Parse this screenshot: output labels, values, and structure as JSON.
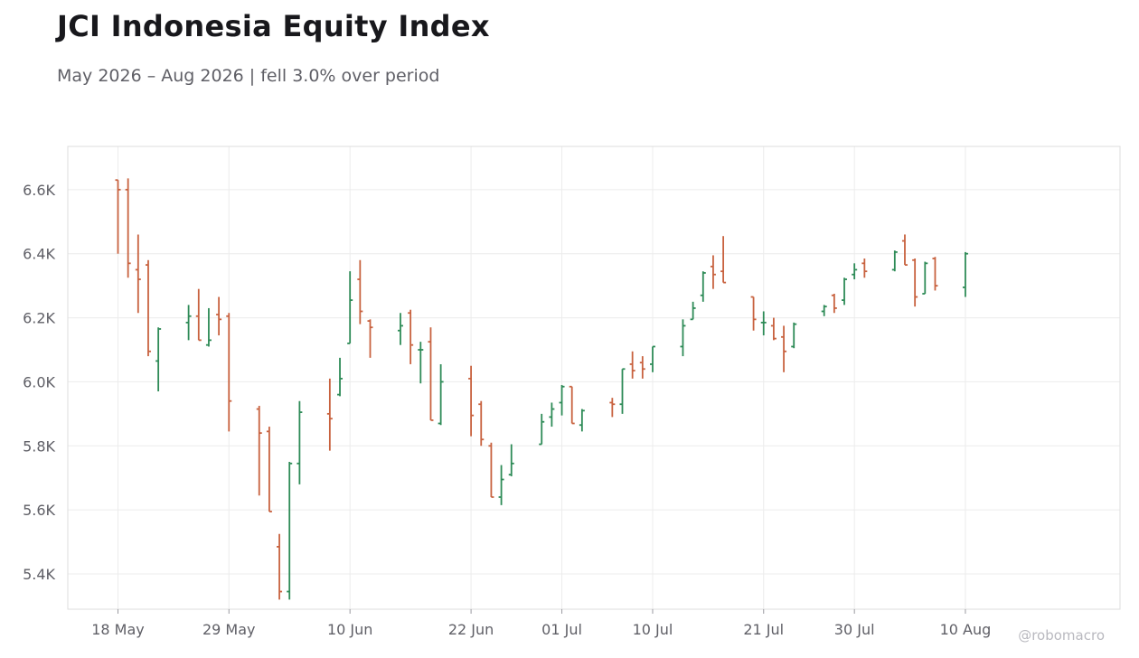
{
  "chart_data": {
    "type": "ohlc",
    "title": "JCI Indonesia Equity Index",
    "subtitle": "May 2026 – Aug 2026 | fell 3.0% over period",
    "credit": "@robomacro",
    "xlabel": "",
    "ylabel": "",
    "grid": true,
    "legend": "none",
    "x_ticks": [
      "18 May",
      "29 May",
      "10 Jun",
      "22 Jun",
      "01 Jul",
      "10 Jul",
      "21 Jul",
      "30 Jul",
      "10 Aug"
    ],
    "y_ticks": [
      "5.4K",
      "5.6K",
      "5.8K",
      "6.0K",
      "6.2K",
      "6.4K",
      "6.6K"
    ],
    "ylim": [
      5290,
      6735
    ],
    "colors": {
      "up": "#2e8b57",
      "down": "#c8623f",
      "grid": "#ececec",
      "axis": "#dddddd"
    },
    "bars": [
      {
        "x": "18 May",
        "open": 6630,
        "high": 6630,
        "low": 6400,
        "close": 6600
      },
      {
        "x": "19 May",
        "open": 6600,
        "high": 6635,
        "low": 6325,
        "close": 6370
      },
      {
        "x": "20 May",
        "open": 6350,
        "high": 6460,
        "low": 6215,
        "close": 6320
      },
      {
        "x": "21 May",
        "open": 6365,
        "high": 6380,
        "low": 6080,
        "close": 6095
      },
      {
        "x": "22 May",
        "open": 6065,
        "high": 6170,
        "low": 5970,
        "close": 6165
      },
      {
        "x": "25 May",
        "open": 6185,
        "high": 6240,
        "low": 6130,
        "close": 6205
      },
      {
        "x": "26 May",
        "open": 6205,
        "high": 6290,
        "low": 6130,
        "close": 6130
      },
      {
        "x": "27 May",
        "open": 6115,
        "high": 6230,
        "low": 6110,
        "close": 6130
      },
      {
        "x": "28 May",
        "open": 6210,
        "high": 6265,
        "low": 6145,
        "close": 6195
      },
      {
        "x": "29 May",
        "open": 6205,
        "high": 6215,
        "low": 5845,
        "close": 5940
      },
      {
        "x": "01 Jun",
        "open": 5915,
        "high": 5925,
        "low": 5645,
        "close": 5840
      },
      {
        "x": "02 Jun",
        "open": 5845,
        "high": 5860,
        "low": 5595,
        "close": 5595
      },
      {
        "x": "03 Jun",
        "open": 5485,
        "high": 5525,
        "low": 5320,
        "close": 5345
      },
      {
        "x": "04 Jun",
        "open": 5345,
        "high": 5750,
        "low": 5320,
        "close": 5745
      },
      {
        "x": "05 Jun",
        "open": 5745,
        "high": 5940,
        "low": 5680,
        "close": 5905
      },
      {
        "x": "08 Jun",
        "open": 5900,
        "high": 6010,
        "low": 5785,
        "close": 5885
      },
      {
        "x": "09 Jun",
        "open": 5960,
        "high": 6075,
        "low": 5955,
        "close": 6010
      },
      {
        "x": "10 Jun",
        "open": 6120,
        "high": 6345,
        "low": 6120,
        "close": 6255
      },
      {
        "x": "11 Jun",
        "open": 6320,
        "high": 6380,
        "low": 6180,
        "close": 6220
      },
      {
        "x": "12 Jun",
        "open": 6190,
        "high": 6195,
        "low": 6075,
        "close": 6170
      },
      {
        "x": "15 Jun",
        "open": 6160,
        "high": 6215,
        "low": 6115,
        "close": 6175
      },
      {
        "x": "16 Jun",
        "open": 6215,
        "high": 6225,
        "low": 6055,
        "close": 6115
      },
      {
        "x": "17 Jun",
        "open": 6100,
        "high": 6125,
        "low": 5995,
        "close": 6100
      },
      {
        "x": "18 Jun",
        "open": 6125,
        "high": 6170,
        "low": 5880,
        "close": 5880
      },
      {
        "x": "19 Jun",
        "open": 5870,
        "high": 6055,
        "low": 5865,
        "close": 6000
      },
      {
        "x": "22 Jun",
        "open": 6010,
        "high": 6050,
        "low": 5830,
        "close": 5895
      },
      {
        "x": "23 Jun",
        "open": 5930,
        "high": 5940,
        "low": 5800,
        "close": 5820
      },
      {
        "x": "24 Jun",
        "open": 5800,
        "high": 5810,
        "low": 5640,
        "close": 5640
      },
      {
        "x": "25 Jun",
        "open": 5640,
        "high": 5740,
        "low": 5615,
        "close": 5695
      },
      {
        "x": "26 Jun",
        "open": 5710,
        "high": 5805,
        "low": 5705,
        "close": 5745
      },
      {
        "x": "29 Jun",
        "open": 5805,
        "high": 5900,
        "low": 5805,
        "close": 5875
      },
      {
        "x": "30 Jun",
        "open": 5890,
        "high": 5935,
        "low": 5860,
        "close": 5915
      },
      {
        "x": "01 Jul",
        "open": 5935,
        "high": 5990,
        "low": 5895,
        "close": 5985
      },
      {
        "x": "02 Jul",
        "open": 5985,
        "high": 5985,
        "low": 5870,
        "close": 5870
      },
      {
        "x": "03 Jul",
        "open": 5865,
        "high": 5915,
        "low": 5845,
        "close": 5910
      },
      {
        "x": "06 Jul",
        "open": 5935,
        "high": 5950,
        "low": 5890,
        "close": 5930
      },
      {
        "x": "07 Jul",
        "open": 5930,
        "high": 6040,
        "low": 5900,
        "close": 6040
      },
      {
        "x": "08 Jul",
        "open": 6055,
        "high": 6095,
        "low": 6010,
        "close": 6035
      },
      {
        "x": "09 Jul",
        "open": 6060,
        "high": 6080,
        "low": 6010,
        "close": 6040
      },
      {
        "x": "10 Jul",
        "open": 6055,
        "high": 6110,
        "low": 6030,
        "close": 6110
      },
      {
        "x": "13 Jul",
        "open": 6110,
        "high": 6195,
        "low": 6080,
        "close": 6175
      },
      {
        "x": "14 Jul",
        "open": 6195,
        "high": 6250,
        "low": 6195,
        "close": 6230
      },
      {
        "x": "15 Jul",
        "open": 6270,
        "high": 6345,
        "low": 6250,
        "close": 6340
      },
      {
        "x": "16 Jul",
        "open": 6360,
        "high": 6395,
        "low": 6290,
        "close": 6335
      },
      {
        "x": "17 Jul",
        "open": 6345,
        "high": 6455,
        "low": 6310,
        "close": 6310
      },
      {
        "x": "20 Jul",
        "open": 6265,
        "high": 6265,
        "low": 6160,
        "close": 6195
      },
      {
        "x": "21 Jul",
        "open": 6185,
        "high": 6220,
        "low": 6145,
        "close": 6185
      },
      {
        "x": "22 Jul",
        "open": 6175,
        "high": 6200,
        "low": 6130,
        "close": 6135
      },
      {
        "x": "23 Jul",
        "open": 6140,
        "high": 6175,
        "low": 6030,
        "close": 6095
      },
      {
        "x": "24 Jul",
        "open": 6110,
        "high": 6185,
        "low": 6105,
        "close": 6180
      },
      {
        "x": "27 Jul",
        "open": 6220,
        "high": 6240,
        "low": 6205,
        "close": 6235
      },
      {
        "x": "28 Jul",
        "open": 6270,
        "high": 6275,
        "low": 6215,
        "close": 6230
      },
      {
        "x": "29 Jul",
        "open": 6255,
        "high": 6325,
        "low": 6240,
        "close": 6320
      },
      {
        "x": "30 Jul",
        "open": 6335,
        "high": 6370,
        "low": 6320,
        "close": 6350
      },
      {
        "x": "31 Jul",
        "open": 6370,
        "high": 6385,
        "low": 6325,
        "close": 6345
      },
      {
        "x": "03 Aug",
        "open": 6350,
        "high": 6410,
        "low": 6345,
        "close": 6405
      },
      {
        "x": "04 Aug",
        "open": 6440,
        "high": 6460,
        "low": 6365,
        "close": 6365
      },
      {
        "x": "05 Aug",
        "open": 6380,
        "high": 6385,
        "low": 6235,
        "close": 6265
      },
      {
        "x": "06 Aug",
        "open": 6275,
        "high": 6375,
        "low": 6275,
        "close": 6370
      },
      {
        "x": "07 Aug",
        "open": 6385,
        "high": 6390,
        "low": 6285,
        "close": 6300
      },
      {
        "x": "10 Aug",
        "open": 6295,
        "high": 6405,
        "low": 6265,
        "close": 6400
      }
    ]
  }
}
